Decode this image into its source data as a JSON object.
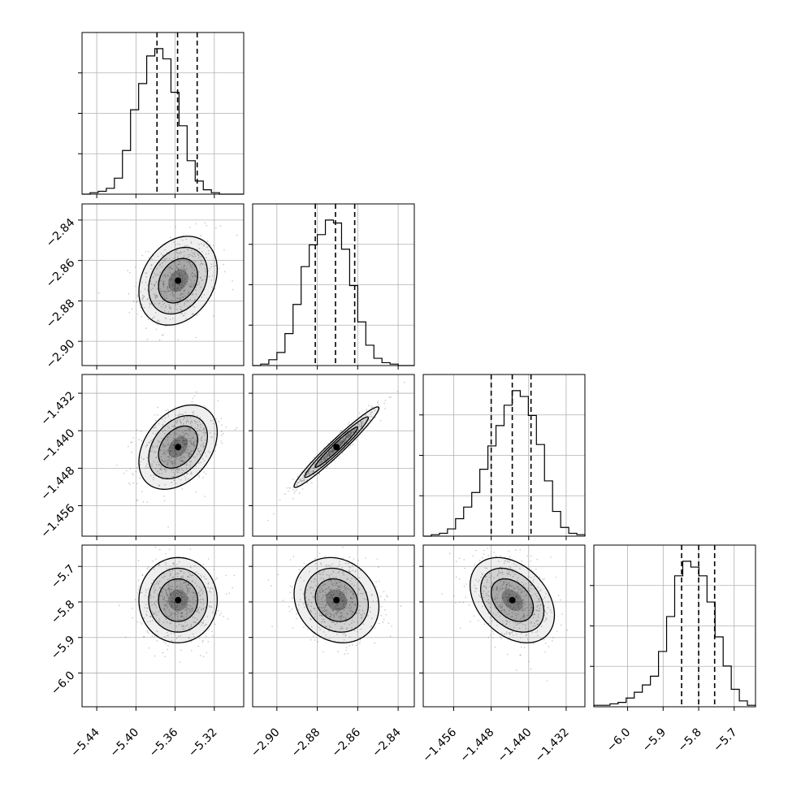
{
  "chart_data": {
    "type": "corner",
    "title": "",
    "grid": true,
    "quantile_lines": "dashed",
    "parameters": [
      {
        "name": "",
        "range": [
          -5.455,
          -5.29
        ],
        "ticks": [
          -5.44,
          -5.4,
          -5.36,
          -5.32
        ],
        "tick_labels": [
          "−5.44",
          "−5.40",
          "−5.36",
          "−5.32"
        ],
        "quantiles": [
          -5.3785,
          -5.3575,
          -5.3375
        ],
        "hist": [
          0,
          1,
          2,
          4,
          11,
          30,
          58,
          76,
          95,
          100,
          93,
          70,
          47,
          23,
          9,
          3,
          1,
          0,
          0,
          0
        ]
      },
      {
        "name": "",
        "range": [
          -2.912,
          -2.832
        ],
        "ticks": [
          -2.9,
          -2.88,
          -2.86,
          -2.84
        ],
        "tick_labels": [
          "−2.90",
          "−2.88",
          "−2.86",
          "−2.84"
        ],
        "quantiles": [
          -2.881,
          -2.871,
          -2.8615
        ],
        "hist": [
          0,
          1,
          4,
          9,
          22,
          42,
          68,
          83,
          90,
          100,
          98,
          80,
          55,
          30,
          14,
          5,
          2,
          1,
          0,
          0
        ]
      },
      {
        "name": "",
        "range": [
          -1.4625,
          -1.428
        ],
        "ticks": [
          -1.456,
          -1.448,
          -1.44,
          -1.432
        ],
        "tick_labels": [
          "−1.456",
          "−1.448",
          "−1.440",
          "−1.432"
        ],
        "quantiles": [
          -1.448,
          -1.4435,
          -1.4395
        ],
        "hist": [
          0,
          1,
          2,
          5,
          12,
          20,
          30,
          46,
          62,
          76,
          90,
          100,
          96,
          83,
          63,
          38,
          17,
          6,
          2,
          1
        ]
      },
      {
        "name": "",
        "range": [
          -6.095,
          -5.64
        ],
        "ticks": [
          -6.0,
          -5.9,
          -5.8,
          -5.7
        ],
        "tick_labels": [
          "−6.0",
          "−5.9",
          "−5.8",
          "−5.7"
        ],
        "quantiles": [
          -5.848,
          -5.8,
          -5.755
        ],
        "hist": [
          1,
          1,
          2,
          3,
          6,
          10,
          15,
          21,
          38,
          62,
          90,
          100,
          96,
          90,
          72,
          48,
          28,
          12,
          4,
          1
        ]
      }
    ],
    "pairs": [
      {
        "x": 0,
        "y": 1,
        "center": [
          -5.357,
          -2.87
        ],
        "sigma": [
          0.02,
          0.011
        ],
        "rho": 0.25
      },
      {
        "x": 0,
        "y": 2,
        "center": [
          -5.357,
          -1.4435
        ],
        "sigma": [
          0.02,
          0.0045
        ],
        "rho": 0.35
      },
      {
        "x": 1,
        "y": 2,
        "center": [
          -2.8705,
          -1.4435
        ],
        "sigma": [
          0.0105,
          0.0043
        ],
        "rho": 0.97
      },
      {
        "x": 0,
        "y": 3,
        "center": [
          -5.357,
          -5.795
        ],
        "sigma": [
          0.02,
          0.06
        ],
        "rho": 0.0
      },
      {
        "x": 1,
        "y": 3,
        "center": [
          -2.8705,
          -5.795
        ],
        "sigma": [
          0.0105,
          0.06
        ],
        "rho": -0.15
      },
      {
        "x": 2,
        "y": 3,
        "center": [
          -1.4435,
          -5.795
        ],
        "sigma": [
          0.0045,
          0.06
        ],
        "rho": -0.35
      }
    ],
    "colors": {
      "ink": "#000000",
      "grid": "#b0b0b0",
      "points": "#808080"
    }
  }
}
